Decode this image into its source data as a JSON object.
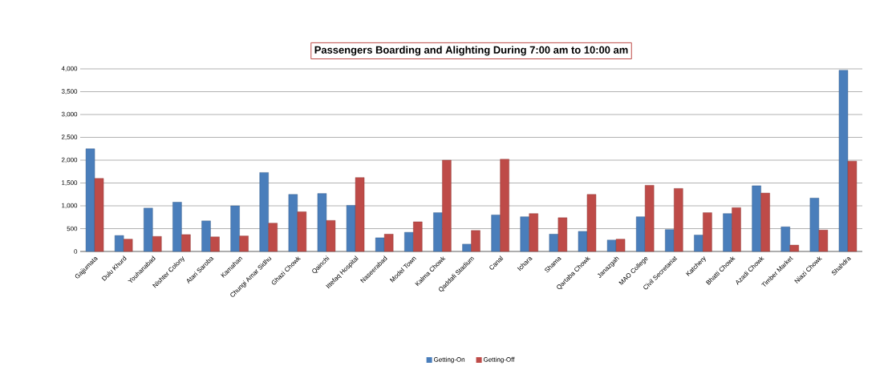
{
  "chart_data": {
    "type": "bar",
    "title": "Passengers Boarding and Alighting During 7:00 am to 10:00 am",
    "categories": [
      "Gajjumata",
      "Dulu Khurd",
      "Youhanabad",
      "Nishter Colony",
      "Atari Saroba",
      "Kamahan",
      "Chungi Amar Sidhu",
      "Ghazi Chowk",
      "Qainchi",
      "Ittefaq Hospital",
      "Naseerabad",
      "Model Town",
      "Kalma Chowk",
      "Qaddafi Stadium",
      "Canal",
      "Ichara",
      "Shama",
      "Qartaba Chowk",
      "Janazgah",
      "MAO College",
      "Civil Secretariat",
      "Katchery",
      "Bhatti Chowk",
      "Azadi Chowk",
      "Timber Market",
      "Niazi Chowk",
      "Shahdra"
    ],
    "series": [
      {
        "name": "Getting-On",
        "color": "#4a7ebb",
        "values": [
          2250,
          350,
          950,
          1080,
          670,
          1000,
          1730,
          1250,
          1270,
          1010,
          300,
          420,
          850,
          160,
          800,
          760,
          380,
          440,
          250,
          760,
          480,
          360,
          830,
          1440,
          540,
          1170,
          3970
        ]
      },
      {
        "name": "Getting-Off",
        "color": "#be4b48",
        "values": [
          1600,
          270,
          330,
          370,
          320,
          340,
          620,
          870,
          680,
          1620,
          380,
          650,
          2000,
          460,
          2020,
          830,
          740,
          1250,
          270,
          1450,
          1380,
          850,
          960,
          1280,
          140,
          470,
          1980
        ]
      }
    ],
    "ylim": [
      0,
      4000
    ],
    "yticks": [
      {
        "value": 0,
        "label": "0"
      },
      {
        "value": 500,
        "label": "500"
      },
      {
        "value": 1000,
        "label": "1,000"
      },
      {
        "value": 1500,
        "label": "1,500"
      },
      {
        "value": 2000,
        "label": "2,000"
      },
      {
        "value": 2500,
        "label": "2,500"
      },
      {
        "value": 3000,
        "label": "3,000"
      },
      {
        "value": 3500,
        "label": "3,500"
      },
      {
        "value": 4000,
        "label": "4,000"
      }
    ],
    "grid": "y",
    "legend": "bottom"
  }
}
